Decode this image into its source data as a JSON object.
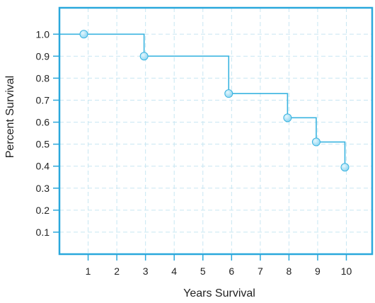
{
  "chart_data": {
    "type": "line",
    "step": "post",
    "title": "",
    "xlabel": "Years Survival",
    "ylabel": "Percent Survival",
    "xlim": [
      0,
      10.9
    ],
    "ylim": [
      0,
      1.12
    ],
    "x_ticks": [
      1,
      2,
      3,
      4,
      5,
      6,
      7,
      8,
      9,
      10
    ],
    "x_tick_labels": [
      "1",
      "2",
      "3",
      "4",
      "5",
      "6",
      "7",
      "8",
      "9",
      "10"
    ],
    "y_ticks": [
      0.1,
      0.2,
      0.3,
      0.4,
      0.5,
      0.6,
      0.7,
      0.8,
      0.9,
      1.0
    ],
    "y_tick_labels": [
      "0.1",
      "0.2",
      "0.3",
      "0.4",
      "0.5",
      "0.6",
      "0.7",
      "0.8",
      "0.9",
      "1.0"
    ],
    "grid": true,
    "line_start_x": 0,
    "series": [
      {
        "x": [
          0.85,
          2.95,
          5.9,
          7.95,
          8.95,
          9.95
        ],
        "y": [
          1.0,
          0.9,
          0.73,
          0.62,
          0.51,
          0.395
        ],
        "color": "#3ab4e0"
      }
    ],
    "colors": {
      "frame": "#2aa8dc",
      "grid": "#c8e6f2",
      "line": "#3ab4e0",
      "marker_fill": "#8fd6f2",
      "marker_highlight": "#e6f7fd"
    }
  }
}
